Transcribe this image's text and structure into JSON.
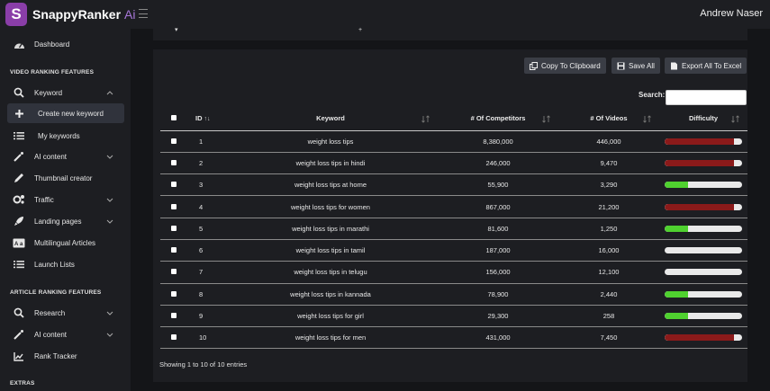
{
  "header": {
    "brand": "SnappyRanker",
    "brand_suffix": "Ai",
    "user_name": "Andrew Naser"
  },
  "sidebar": {
    "dashboard": "Dashboard",
    "section_video": "VIDEO RANKING FEATURES",
    "keyword": "Keyword",
    "create_new_keyword": "Create new keyword",
    "my_keywords": "My keywords",
    "ai_content": "AI content",
    "thumbnail_creator": "Thumbnail creator",
    "traffic": "Traffic",
    "landing_pages": "Landing pages",
    "multilingual_articles": "Multilingual Articles",
    "launch_lists": "Launch Lists",
    "section_article": "ARTICLE RANKING FEATURES",
    "research": "Research",
    "ai_content_2": "AI content",
    "rank_tracker": "Rank Tracker",
    "section_extras": "EXTRAS"
  },
  "toolbar": {
    "copy_label": "Copy To Clipboard",
    "save_label": "Save All",
    "export_label": "Export All To Excel"
  },
  "search": {
    "label": "Search:",
    "value": ""
  },
  "table": {
    "headers": {
      "id": "ID",
      "keyword": "Keyword",
      "competitors": "# Of Competitors",
      "videos": "# Of Videos",
      "difficulty": "Difficulty"
    },
    "rows": [
      {
        "id": "1",
        "keyword": "weight loss tips",
        "competitors": "8,380,000",
        "videos": "446,000",
        "difficulty": 0.9,
        "difficulty_color": "#8b1a1a"
      },
      {
        "id": "2",
        "keyword": "weight loss tips in hindi",
        "competitors": "246,000",
        "videos": "9,470",
        "difficulty": 0.9,
        "difficulty_color": "#8b1a1a"
      },
      {
        "id": "3",
        "keyword": "weight loss tips at home",
        "competitors": "55,900",
        "videos": "3,290",
        "difficulty": 0.3,
        "difficulty_color": "#4fd12f"
      },
      {
        "id": "4",
        "keyword": "weight loss tips for women",
        "competitors": "867,000",
        "videos": "21,200",
        "difficulty": 0.9,
        "difficulty_color": "#8b1a1a"
      },
      {
        "id": "5",
        "keyword": "weight loss tips in marathi",
        "competitors": "81,600",
        "videos": "1,250",
        "difficulty": 0.3,
        "difficulty_color": "#4fd12f"
      },
      {
        "id": "6",
        "keyword": "weight loss tips in tamil",
        "competitors": "187,000",
        "videos": "16,000",
        "difficulty": 0,
        "difficulty_color": "#4fd12f"
      },
      {
        "id": "7",
        "keyword": "weight loss tips in telugu",
        "competitors": "156,000",
        "videos": "12,100",
        "difficulty": 0,
        "difficulty_color": "#4fd12f"
      },
      {
        "id": "8",
        "keyword": "weight loss tips in kannada",
        "competitors": "78,900",
        "videos": "2,440",
        "difficulty": 0.3,
        "difficulty_color": "#4fd12f"
      },
      {
        "id": "9",
        "keyword": "weight loss tips for girl",
        "competitors": "29,300",
        "videos": "258",
        "difficulty": 0.3,
        "difficulty_color": "#4fd12f"
      },
      {
        "id": "10",
        "keyword": "weight loss tips for men",
        "competitors": "431,000",
        "videos": "7,450",
        "difficulty": 0.9,
        "difficulty_color": "#8b1a1a"
      }
    ]
  },
  "footer": {
    "info": "Showing 1 to 10 of 10 entries"
  }
}
